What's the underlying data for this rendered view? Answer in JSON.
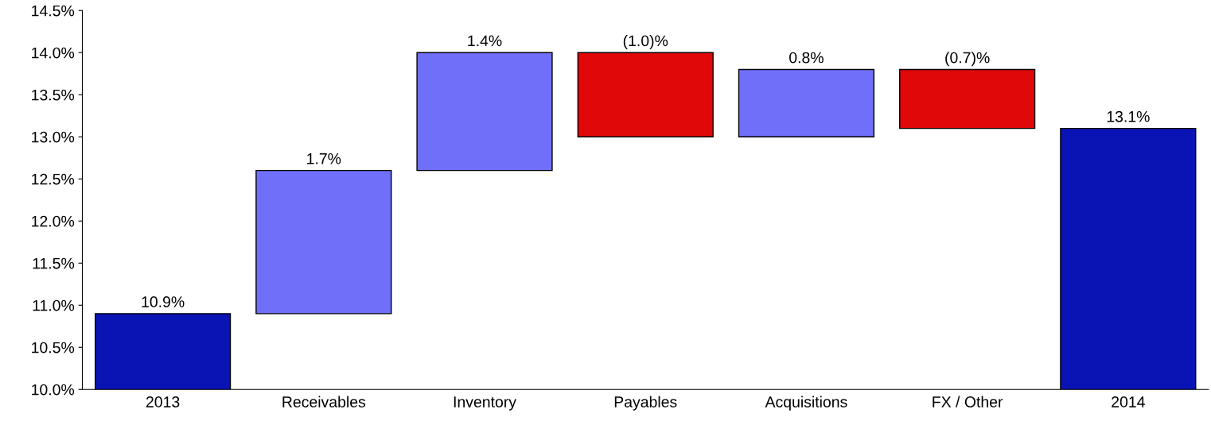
{
  "chart_data": {
    "type": "bar",
    "categories": [
      "2013",
      "Receivables",
      "Inventory",
      "Payables",
      "Acquisitions",
      "FX / Other",
      "2014"
    ],
    "values": [
      10.9,
      1.7,
      1.4,
      -1.0,
      0.8,
      -0.7,
      13.1
    ],
    "base": [
      0,
      10.9,
      12.6,
      14.0,
      13.0,
      13.8,
      0
    ],
    "colors": [
      "#0a14b4",
      "#6f6ffa",
      "#6f6ffa",
      "#e00808",
      "#6f6ffa",
      "#e00808",
      "#0a14b4"
    ],
    "value_labels": [
      "10.9%",
      "1.7%",
      "1.4%",
      "(1.0)%",
      "0.8%",
      "(0.7)%",
      "13.1%"
    ],
    "ylim": [
      10.0,
      14.5
    ],
    "yticks": [
      {
        "value": 10.0,
        "label": "10.0%"
      },
      {
        "value": 10.5,
        "label": "10.5%"
      },
      {
        "value": 11.0,
        "label": "11.0%"
      },
      {
        "value": 11.5,
        "label": "11.5%"
      },
      {
        "value": 12.0,
        "label": "12.0%"
      },
      {
        "value": 12.5,
        "label": "12.5%"
      },
      {
        "value": 13.0,
        "label": "13.0%"
      },
      {
        "value": 13.5,
        "label": "13.5%"
      },
      {
        "value": 14.0,
        "label": "14.0%"
      },
      {
        "value": 14.5,
        "label": "14.5%"
      }
    ],
    "grid": false,
    "legend": false
  }
}
